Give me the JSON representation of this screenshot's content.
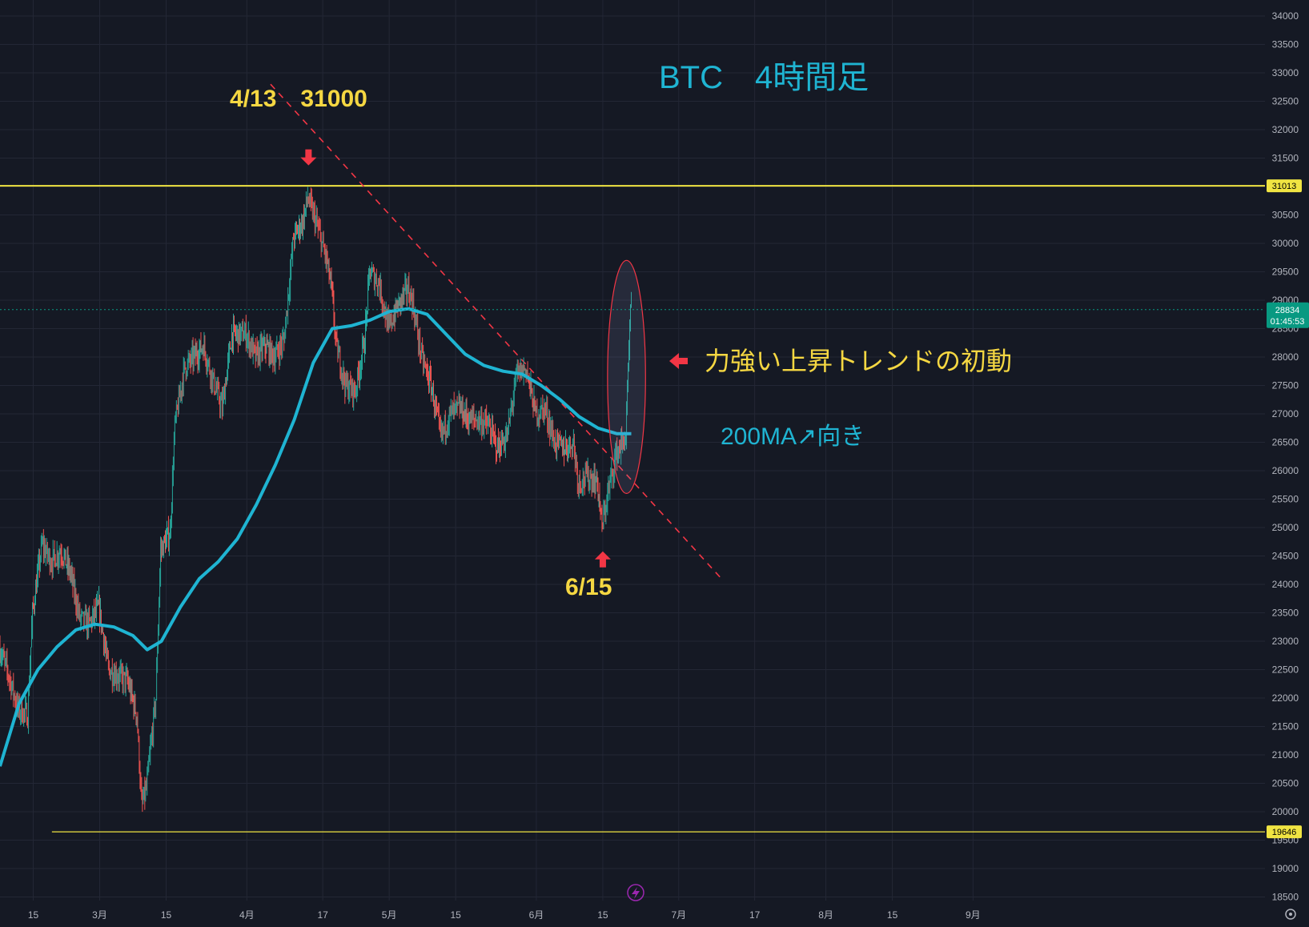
{
  "colors": {
    "background": "#151924",
    "grid": "#232735",
    "axis_text": "#b2b5be",
    "candle_up": "#26a69a",
    "candle_down": "#ef5350",
    "ma_line": "#1fb4d2",
    "hline": "#f0e442",
    "trendline": "#f23645",
    "annotation_yellow": "#f5d742",
    "annotation_cyan": "#1fb4d2",
    "price_tag": "#089981",
    "arrow_red": "#f23645"
  },
  "chart_data": {
    "type": "candlestick",
    "title": "BTC　4時間足",
    "timeframe": "4時間足",
    "x_tick_labels": [
      "15",
      "3月",
      "15",
      "4月",
      "17",
      "5月",
      "15",
      "6月",
      "15",
      "7月",
      "17",
      "8月",
      "15",
      "9月"
    ],
    "x_tick_dates": [
      "2023-02-15",
      "2023-03-01",
      "2023-03-15",
      "2023-04-01",
      "2023-04-17",
      "2023-05-01",
      "2023-05-15",
      "2023-06-01",
      "2023-06-15",
      "2023-07-01",
      "2023-07-17",
      "2023-08-01",
      "2023-08-15",
      "2023-09-01"
    ],
    "y_ticks": [
      18500,
      19000,
      19500,
      20000,
      20500,
      21000,
      21500,
      22000,
      22500,
      23000,
      23500,
      24000,
      24500,
      25000,
      25500,
      26000,
      26500,
      27000,
      27500,
      28000,
      28500,
      29000,
      29500,
      30000,
      30500,
      31000,
      31500,
      32000,
      32500,
      33000,
      33500,
      34000
    ],
    "ylim": [
      18300,
      34000
    ],
    "price_path": [
      [
        "2023-02-08",
        22900
      ],
      [
        "2023-02-10",
        22400
      ],
      [
        "2023-02-12",
        21800
      ],
      [
        "2023-02-14",
        21700
      ],
      [
        "2023-02-15",
        23500
      ],
      [
        "2023-02-17",
        24700
      ],
      [
        "2023-02-19",
        24400
      ],
      [
        "2023-02-21",
        24600
      ],
      [
        "2023-02-23",
        24200
      ],
      [
        "2023-02-25",
        23400
      ],
      [
        "2023-02-27",
        23300
      ],
      [
        "2023-03-01",
        23600
      ],
      [
        "2023-03-03",
        22500
      ],
      [
        "2023-03-05",
        22400
      ],
      [
        "2023-03-07",
        22300
      ],
      [
        "2023-03-09",
        21700
      ],
      [
        "2023-03-10",
        20100
      ],
      [
        "2023-03-11",
        20400
      ],
      [
        "2023-03-13",
        22000
      ],
      [
        "2023-03-14",
        24600
      ],
      [
        "2023-03-16",
        24900
      ],
      [
        "2023-03-17",
        26800
      ],
      [
        "2023-03-19",
        27800
      ],
      [
        "2023-03-21",
        28000
      ],
      [
        "2023-03-23",
        28200
      ],
      [
        "2023-03-25",
        27600
      ],
      [
        "2023-03-27",
        27100
      ],
      [
        "2023-03-29",
        28400
      ],
      [
        "2023-04-01",
        28400
      ],
      [
        "2023-04-03",
        28000
      ],
      [
        "2023-04-05",
        28200
      ],
      [
        "2023-04-07",
        28000
      ],
      [
        "2023-04-09",
        28300
      ],
      [
        "2023-04-11",
        30100
      ],
      [
        "2023-04-13",
        30400
      ],
      [
        "2023-04-14",
        30800
      ],
      [
        "2023-04-16",
        30300
      ],
      [
        "2023-04-18",
        29700
      ],
      [
        "2023-04-19",
        29200
      ],
      [
        "2023-04-20",
        28200
      ],
      [
        "2023-04-22",
        27500
      ],
      [
        "2023-04-24",
        27400
      ],
      [
        "2023-04-26",
        28300
      ],
      [
        "2023-04-27",
        29500
      ],
      [
        "2023-04-29",
        29300
      ],
      [
        "2023-05-01",
        28500
      ],
      [
        "2023-05-03",
        28900
      ],
      [
        "2023-05-05",
        29200
      ],
      [
        "2023-05-06",
        29000
      ],
      [
        "2023-05-08",
        28000
      ],
      [
        "2023-05-10",
        27500
      ],
      [
        "2023-05-12",
        26600
      ],
      [
        "2023-05-14",
        27000
      ],
      [
        "2023-05-16",
        27100
      ],
      [
        "2023-05-18",
        26900
      ],
      [
        "2023-05-20",
        26900
      ],
      [
        "2023-05-22",
        26800
      ],
      [
        "2023-05-24",
        26400
      ],
      [
        "2023-05-26",
        26600
      ],
      [
        "2023-05-28",
        27700
      ],
      [
        "2023-05-30",
        27800
      ],
      [
        "2023-06-01",
        27000
      ],
      [
        "2023-06-03",
        27100
      ],
      [
        "2023-06-05",
        26500
      ],
      [
        "2023-06-07",
        26400
      ],
      [
        "2023-06-09",
        26500
      ],
      [
        "2023-06-10",
        25800
      ],
      [
        "2023-06-12",
        25900
      ],
      [
        "2023-06-14",
        25800
      ],
      [
        "2023-06-15",
        25000
      ],
      [
        "2023-06-16",
        25500
      ],
      [
        "2023-06-18",
        26300
      ],
      [
        "2023-06-20",
        26600
      ],
      [
        "2023-06-21",
        28800
      ]
    ],
    "series": [
      {
        "name": "200MA",
        "type": "line",
        "points": [
          [
            "2023-02-08",
            20800
          ],
          [
            "2023-02-12",
            21900
          ],
          [
            "2023-02-16",
            22500
          ],
          [
            "2023-02-20",
            22900
          ],
          [
            "2023-02-24",
            23200
          ],
          [
            "2023-02-28",
            23300
          ],
          [
            "2023-03-04",
            23250
          ],
          [
            "2023-03-08",
            23100
          ],
          [
            "2023-03-11",
            22850
          ],
          [
            "2023-03-14",
            23000
          ],
          [
            "2023-03-18",
            23600
          ],
          [
            "2023-03-22",
            24100
          ],
          [
            "2023-03-26",
            24400
          ],
          [
            "2023-03-30",
            24800
          ],
          [
            "2023-04-03",
            25400
          ],
          [
            "2023-04-07",
            26100
          ],
          [
            "2023-04-11",
            26900
          ],
          [
            "2023-04-15",
            27900
          ],
          [
            "2023-04-19",
            28500
          ],
          [
            "2023-04-23",
            28550
          ],
          [
            "2023-04-27",
            28650
          ],
          [
            "2023-05-01",
            28800
          ],
          [
            "2023-05-05",
            28850
          ],
          [
            "2023-05-09",
            28750
          ],
          [
            "2023-05-13",
            28400
          ],
          [
            "2023-05-17",
            28050
          ],
          [
            "2023-05-21",
            27850
          ],
          [
            "2023-05-25",
            27750
          ],
          [
            "2023-05-29",
            27700
          ],
          [
            "2023-06-02",
            27500
          ],
          [
            "2023-06-06",
            27250
          ],
          [
            "2023-06-10",
            26950
          ],
          [
            "2023-06-14",
            26750
          ],
          [
            "2023-06-18",
            26650
          ],
          [
            "2023-06-21",
            26650
          ]
        ]
      }
    ],
    "horizontal_lines": [
      {
        "price": 31013,
        "label": "31013"
      },
      {
        "price": 19646,
        "label": "19646"
      }
    ],
    "current_price_label": "28834",
    "countdown_label": "01:45:53",
    "trendline": {
      "start": [
        "2023-04-06",
        32800
      ],
      "end": [
        "2023-07-10",
        24100
      ],
      "style": "dashed"
    },
    "annotations": {
      "top_label": "4/13　31000",
      "low_label": "6/15",
      "trend_text": "力強い上昇トレンドの初動",
      "ma_text": "200MA↗向き"
    },
    "highlight_ellipse": {
      "from_date": "2023-06-16",
      "to_date": "2023-06-24",
      "from_price": 25600,
      "to_price": 29700
    }
  }
}
